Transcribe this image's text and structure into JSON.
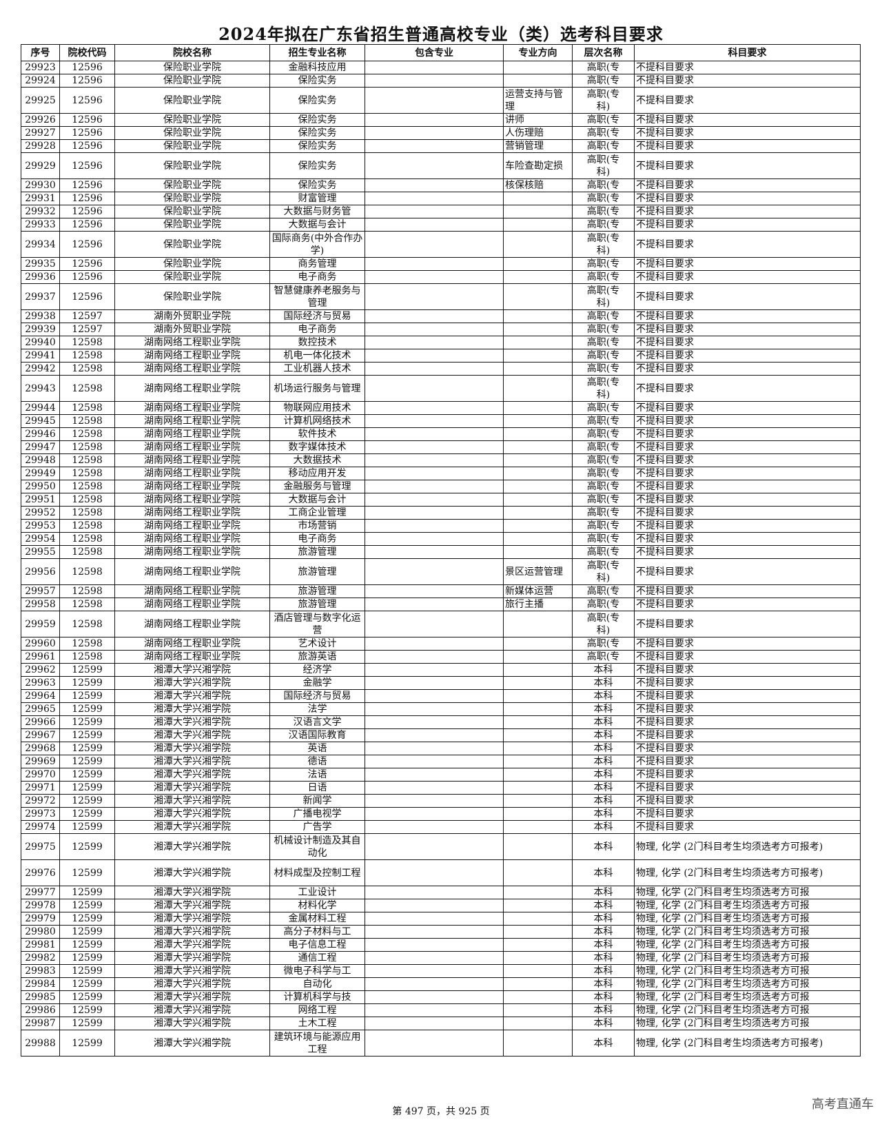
{
  "title": "2024年拟在广东省招生普通高校专业（类）选考科目要求",
  "headers": [
    "序号",
    "院校代码",
    "院校名称",
    "招生专业名称",
    "包含专业",
    "专业方向",
    "层次名称",
    "科目要求"
  ],
  "rows": [
    [
      "29923",
      "12596",
      "保险职业学院",
      "金融科技应用",
      "",
      "",
      "高职(专",
      "不提科目要求"
    ],
    [
      "29924",
      "12596",
      "保险职业学院",
      "保险实务",
      "",
      "",
      "高职(专",
      "不提科目要求"
    ],
    [
      "29925",
      "12596",
      "保险职业学院",
      "保险实务",
      "",
      "运营支持与管理",
      "高职(专科)",
      "不提科目要求"
    ],
    [
      "29926",
      "12596",
      "保险职业学院",
      "保险实务",
      "",
      "讲师",
      "高职(专",
      "不提科目要求"
    ],
    [
      "29927",
      "12596",
      "保险职业学院",
      "保险实务",
      "",
      "人伤理赔",
      "高职(专",
      "不提科目要求"
    ],
    [
      "29928",
      "12596",
      "保险职业学院",
      "保险实务",
      "",
      "营销管理",
      "高职(专",
      "不提科目要求"
    ],
    [
      "29929",
      "12596",
      "保险职业学院",
      "保险实务",
      "",
      "车险查勘定损",
      "高职(专科)",
      "不提科目要求"
    ],
    [
      "29930",
      "12596",
      "保险职业学院",
      "保险实务",
      "",
      "核保核赔",
      "高职(专",
      "不提科目要求"
    ],
    [
      "29931",
      "12596",
      "保险职业学院",
      "财富管理",
      "",
      "",
      "高职(专",
      "不提科目要求"
    ],
    [
      "29932",
      "12596",
      "保险职业学院",
      "大数据与财务管",
      "",
      "",
      "高职(专",
      "不提科目要求"
    ],
    [
      "29933",
      "12596",
      "保险职业学院",
      "大数据与会计",
      "",
      "",
      "高职(专",
      "不提科目要求"
    ],
    [
      "29934",
      "12596",
      "保险职业学院",
      "国际商务(中外合作办学)",
      "",
      "",
      "高职(专科)",
      "不提科目要求"
    ],
    [
      "29935",
      "12596",
      "保险职业学院",
      "商务管理",
      "",
      "",
      "高职(专",
      "不提科目要求"
    ],
    [
      "29936",
      "12596",
      "保险职业学院",
      "电子商务",
      "",
      "",
      "高职(专",
      "不提科目要求"
    ],
    [
      "29937",
      "12596",
      "保险职业学院",
      "智慧健康养老服务与管理",
      "",
      "",
      "高职(专科)",
      "不提科目要求"
    ],
    [
      "29938",
      "12597",
      "湖南外贸职业学院",
      "国际经济与贸易",
      "",
      "",
      "高职(专",
      "不提科目要求"
    ],
    [
      "29939",
      "12597",
      "湖南外贸职业学院",
      "电子商务",
      "",
      "",
      "高职(专",
      "不提科目要求"
    ],
    [
      "29940",
      "12598",
      "湖南网络工程职业学院",
      "数控技术",
      "",
      "",
      "高职(专",
      "不提科目要求"
    ],
    [
      "29941",
      "12598",
      "湖南网络工程职业学院",
      "机电一体化技术",
      "",
      "",
      "高职(专",
      "不提科目要求"
    ],
    [
      "29942",
      "12598",
      "湖南网络工程职业学院",
      "工业机器人技术",
      "",
      "",
      "高职(专",
      "不提科目要求"
    ],
    [
      "29943",
      "12598",
      "湖南网络工程职业学院",
      "机场运行服务与管理",
      "",
      "",
      "高职(专科)",
      "不提科目要求"
    ],
    [
      "29944",
      "12598",
      "湖南网络工程职业学院",
      "物联网应用技术",
      "",
      "",
      "高职(专",
      "不提科目要求"
    ],
    [
      "29945",
      "12598",
      "湖南网络工程职业学院",
      "计算机网络技术",
      "",
      "",
      "高职(专",
      "不提科目要求"
    ],
    [
      "29946",
      "12598",
      "湖南网络工程职业学院",
      "软件技术",
      "",
      "",
      "高职(专",
      "不提科目要求"
    ],
    [
      "29947",
      "12598",
      "湖南网络工程职业学院",
      "数字媒体技术",
      "",
      "",
      "高职(专",
      "不提科目要求"
    ],
    [
      "29948",
      "12598",
      "湖南网络工程职业学院",
      "大数据技术",
      "",
      "",
      "高职(专",
      "不提科目要求"
    ],
    [
      "29949",
      "12598",
      "湖南网络工程职业学院",
      "移动应用开发",
      "",
      "",
      "高职(专",
      "不提科目要求"
    ],
    [
      "29950",
      "12598",
      "湖南网络工程职业学院",
      "金融服务与管理",
      "",
      "",
      "高职(专",
      "不提科目要求"
    ],
    [
      "29951",
      "12598",
      "湖南网络工程职业学院",
      "大数据与会计",
      "",
      "",
      "高职(专",
      "不提科目要求"
    ],
    [
      "29952",
      "12598",
      "湖南网络工程职业学院",
      "工商企业管理",
      "",
      "",
      "高职(专",
      "不提科目要求"
    ],
    [
      "29953",
      "12598",
      "湖南网络工程职业学院",
      "市场营销",
      "",
      "",
      "高职(专",
      "不提科目要求"
    ],
    [
      "29954",
      "12598",
      "湖南网络工程职业学院",
      "电子商务",
      "",
      "",
      "高职(专",
      "不提科目要求"
    ],
    [
      "29955",
      "12598",
      "湖南网络工程职业学院",
      "旅游管理",
      "",
      "",
      "高职(专",
      "不提科目要求"
    ],
    [
      "29956",
      "12598",
      "湖南网络工程职业学院",
      "旅游管理",
      "",
      "景区运营管理",
      "高职(专科)",
      "不提科目要求"
    ],
    [
      "29957",
      "12598",
      "湖南网络工程职业学院",
      "旅游管理",
      "",
      "新媒体运营",
      "高职(专",
      "不提科目要求"
    ],
    [
      "29958",
      "12598",
      "湖南网络工程职业学院",
      "旅游管理",
      "",
      "旅行主播",
      "高职(专",
      "不提科目要求"
    ],
    [
      "29959",
      "12598",
      "湖南网络工程职业学院",
      "酒店管理与数字化运营",
      "",
      "",
      "高职(专科)",
      "不提科目要求"
    ],
    [
      "29960",
      "12598",
      "湖南网络工程职业学院",
      "艺术设计",
      "",
      "",
      "高职(专",
      "不提科目要求"
    ],
    [
      "29961",
      "12598",
      "湖南网络工程职业学院",
      "旅游英语",
      "",
      "",
      "高职(专",
      "不提科目要求"
    ],
    [
      "29962",
      "12599",
      "湘潭大学兴湘学院",
      "经济学",
      "",
      "",
      "本科",
      "不提科目要求"
    ],
    [
      "29963",
      "12599",
      "湘潭大学兴湘学院",
      "金融学",
      "",
      "",
      "本科",
      "不提科目要求"
    ],
    [
      "29964",
      "12599",
      "湘潭大学兴湘学院",
      "国际经济与贸易",
      "",
      "",
      "本科",
      "不提科目要求"
    ],
    [
      "29965",
      "12599",
      "湘潭大学兴湘学院",
      "法学",
      "",
      "",
      "本科",
      "不提科目要求"
    ],
    [
      "29966",
      "12599",
      "湘潭大学兴湘学院",
      "汉语言文学",
      "",
      "",
      "本科",
      "不提科目要求"
    ],
    [
      "29967",
      "12599",
      "湘潭大学兴湘学院",
      "汉语国际教育",
      "",
      "",
      "本科",
      "不提科目要求"
    ],
    [
      "29968",
      "12599",
      "湘潭大学兴湘学院",
      "英语",
      "",
      "",
      "本科",
      "不提科目要求"
    ],
    [
      "29969",
      "12599",
      "湘潭大学兴湘学院",
      "德语",
      "",
      "",
      "本科",
      "不提科目要求"
    ],
    [
      "29970",
      "12599",
      "湘潭大学兴湘学院",
      "法语",
      "",
      "",
      "本科",
      "不提科目要求"
    ],
    [
      "29971",
      "12599",
      "湘潭大学兴湘学院",
      "日语",
      "",
      "",
      "本科",
      "不提科目要求"
    ],
    [
      "29972",
      "12599",
      "湘潭大学兴湘学院",
      "新闻学",
      "",
      "",
      "本科",
      "不提科目要求"
    ],
    [
      "29973",
      "12599",
      "湘潭大学兴湘学院",
      "广播电视学",
      "",
      "",
      "本科",
      "不提科目要求"
    ],
    [
      "29974",
      "12599",
      "湘潭大学兴湘学院",
      "广告学",
      "",
      "",
      "本科",
      "不提科目要求"
    ],
    [
      "29975",
      "12599",
      "湘潭大学兴湘学院",
      "机械设计制造及其自动化",
      "",
      "",
      "本科",
      "物理, 化学 (2门科目考生均须选考方可报考)"
    ],
    [
      "29976",
      "12599",
      "湘潭大学兴湘学院",
      "材料成型及控制工程",
      "",
      "",
      "本科",
      "物理, 化学 (2门科目考生均须选考方可报考)"
    ],
    [
      "29977",
      "12599",
      "湘潭大学兴湘学院",
      "工业设计",
      "",
      "",
      "本科",
      "物理, 化学 (2门科目考生均须选考方可报"
    ],
    [
      "29978",
      "12599",
      "湘潭大学兴湘学院",
      "材料化学",
      "",
      "",
      "本科",
      "物理, 化学 (2门科目考生均须选考方可报"
    ],
    [
      "29979",
      "12599",
      "湘潭大学兴湘学院",
      "金属材料工程",
      "",
      "",
      "本科",
      "物理, 化学 (2门科目考生均须选考方可报"
    ],
    [
      "29980",
      "12599",
      "湘潭大学兴湘学院",
      "高分子材料与工",
      "",
      "",
      "本科",
      "物理, 化学 (2门科目考生均须选考方可报"
    ],
    [
      "29981",
      "12599",
      "湘潭大学兴湘学院",
      "电子信息工程",
      "",
      "",
      "本科",
      "物理, 化学 (2门科目考生均须选考方可报"
    ],
    [
      "29982",
      "12599",
      "湘潭大学兴湘学院",
      "通信工程",
      "",
      "",
      "本科",
      "物理, 化学 (2门科目考生均须选考方可报"
    ],
    [
      "29983",
      "12599",
      "湘潭大学兴湘学院",
      "微电子科学与工",
      "",
      "",
      "本科",
      "物理, 化学 (2门科目考生均须选考方可报"
    ],
    [
      "29984",
      "12599",
      "湘潭大学兴湘学院",
      "自动化",
      "",
      "",
      "本科",
      "物理, 化学 (2门科目考生均须选考方可报"
    ],
    [
      "29985",
      "12599",
      "湘潭大学兴湘学院",
      "计算机科学与技",
      "",
      "",
      "本科",
      "物理, 化学 (2门科目考生均须选考方可报"
    ],
    [
      "29986",
      "12599",
      "湘潭大学兴湘学院",
      "网络工程",
      "",
      "",
      "本科",
      "物理, 化学 (2门科目考生均须选考方可报"
    ],
    [
      "29987",
      "12599",
      "湘潭大学兴湘学院",
      "土木工程",
      "",
      "",
      "本科",
      "物理, 化学 (2门科目考生均须选考方可报"
    ],
    [
      "29988",
      "12599",
      "湘潭大学兴湘学院",
      "建筑环境与能源应用工程",
      "",
      "",
      "本科",
      "物理, 化学 (2门科目考生均须选考方可报考)"
    ]
  ],
  "footer": "第 497 页，共 925 页",
  "brand": "高考直通车"
}
